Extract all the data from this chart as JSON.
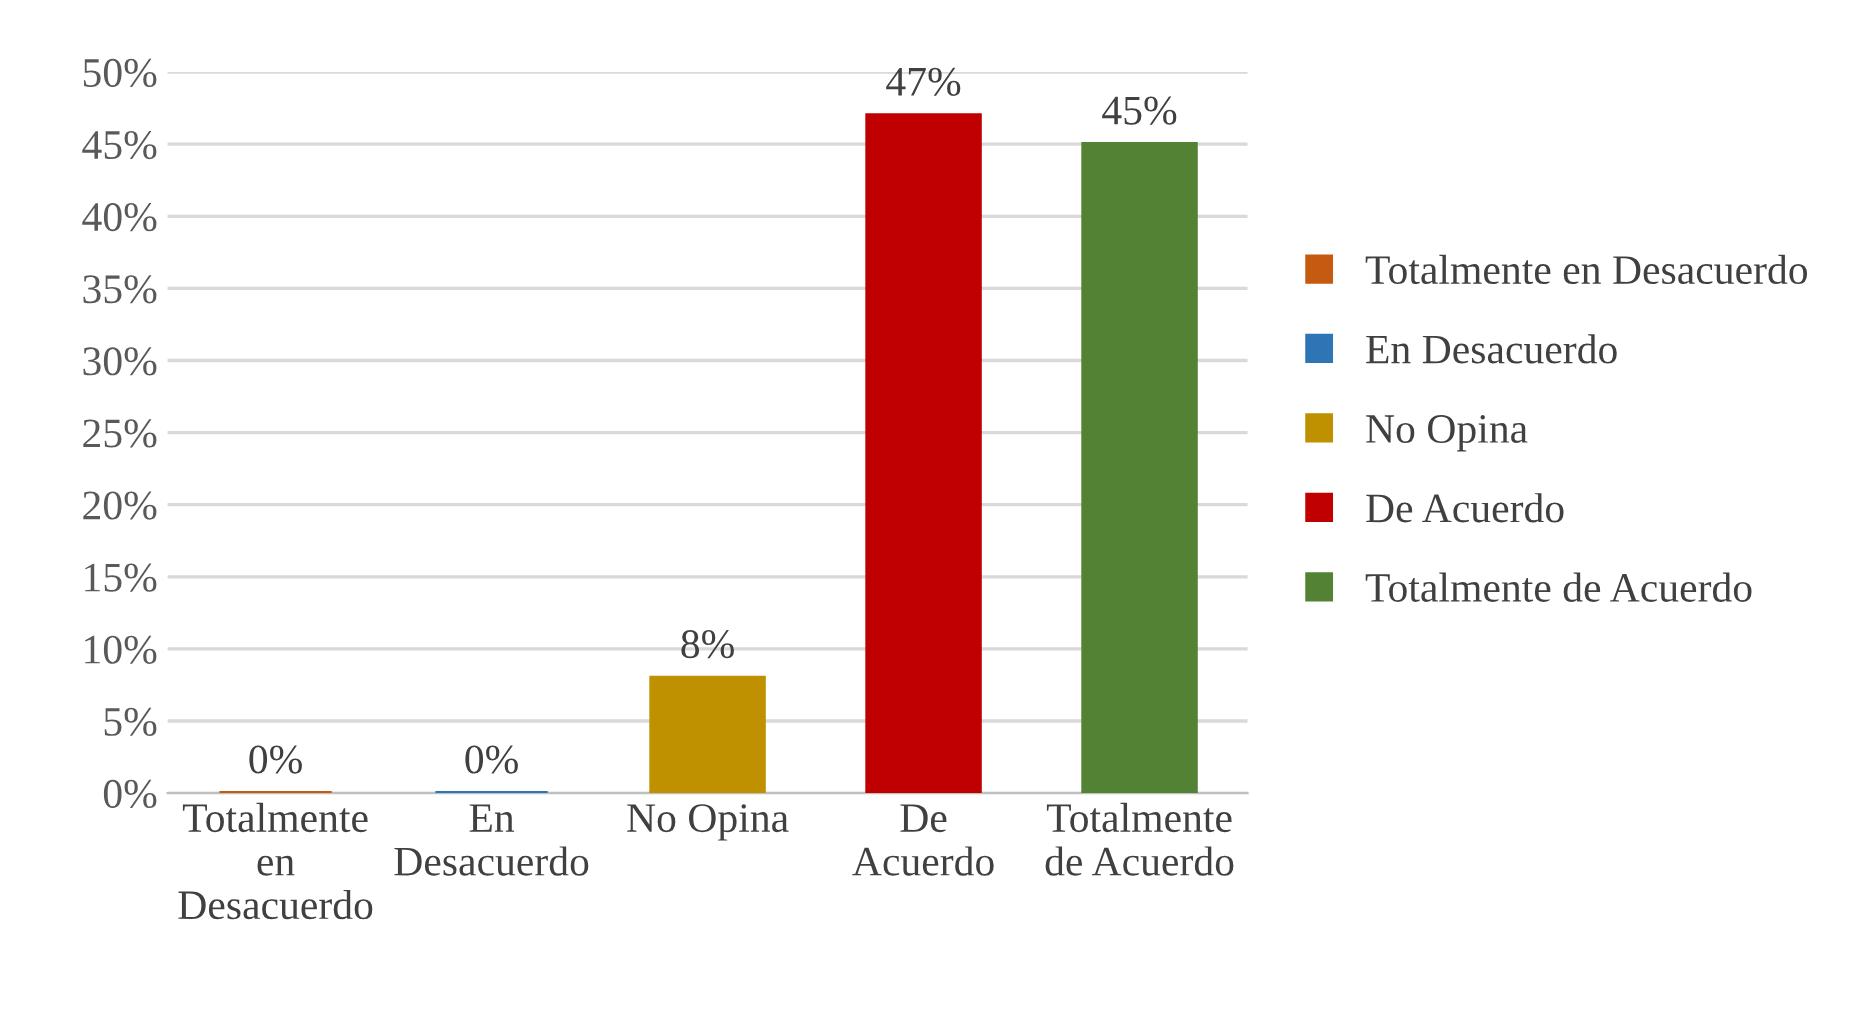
{
  "chart_data": {
    "type": "bar",
    "categories": [
      "Totalmente\nen\nDesacuerdo",
      "En\nDesacuerdo",
      "No Opina",
      "De\nAcuerdo",
      "Totalmente\nde Acuerdo"
    ],
    "series": [
      {
        "name": "Totalmente en Desacuerdo",
        "color": "#c55a11",
        "values": [
          0,
          null,
          null,
          null,
          null
        ],
        "value_labels": [
          "0%",
          null,
          null,
          null,
          null
        ]
      },
      {
        "name": "En Desacuerdo",
        "color": "#2e75b6",
        "values": [
          null,
          0,
          null,
          null,
          null
        ],
        "value_labels": [
          null,
          "0%",
          null,
          null,
          null
        ]
      },
      {
        "name": "No Opina",
        "color": "#bf9000",
        "values": [
          null,
          null,
          8,
          null,
          null
        ],
        "value_labels": [
          null,
          null,
          "8%",
          null,
          null
        ]
      },
      {
        "name": "De Acuerdo",
        "color": "#c00000",
        "values": [
          null,
          null,
          null,
          47,
          null
        ],
        "value_labels": [
          null,
          null,
          null,
          "47%",
          null
        ]
      },
      {
        "name": "Totalmente de Acuerdo",
        "color": "#548235",
        "values": [
          null,
          null,
          null,
          null,
          45
        ],
        "value_labels": [
          null,
          null,
          null,
          null,
          "45%"
        ]
      }
    ],
    "ylim": [
      0,
      50
    ],
    "yticks": [
      {
        "value": 0,
        "label": "0%"
      },
      {
        "value": 5,
        "label": "5%"
      },
      {
        "value": 10,
        "label": "10%"
      },
      {
        "value": 15,
        "label": "15%"
      },
      {
        "value": 20,
        "label": "20%"
      },
      {
        "value": 25,
        "label": "25%"
      },
      {
        "value": 30,
        "label": "30%"
      },
      {
        "value": 35,
        "label": "35%"
      },
      {
        "value": 40,
        "label": "40%"
      },
      {
        "value": 45,
        "label": "45%"
      },
      {
        "value": 50,
        "label": "50%"
      }
    ],
    "grid": "y",
    "legend": "right"
  }
}
